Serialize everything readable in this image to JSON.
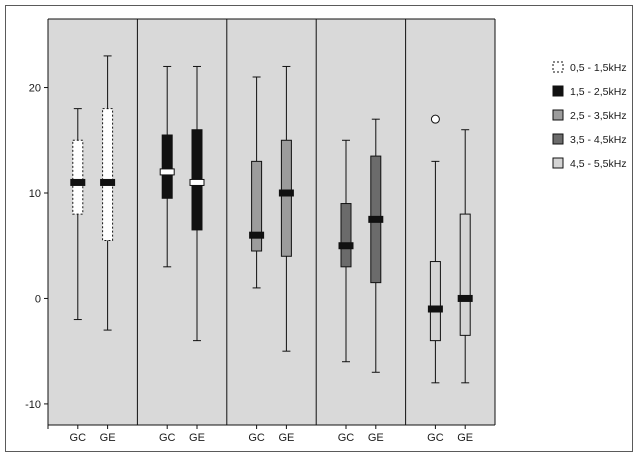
{
  "chart_data": {
    "type": "box",
    "title": "",
    "xlabel": "",
    "ylabel": "",
    "ylim": [
      -12,
      26.5
    ],
    "yticks": [
      -10,
      0,
      10,
      20
    ],
    "group_label_axis": [
      "GC",
      "GE"
    ],
    "panel_background": "#d9d9d9",
    "series": [
      {
        "name": "0,5 - 1,5kHz",
        "fill": "#ffffff",
        "median_fill": "#111111",
        "dashed": true,
        "boxes": [
          {
            "category": "GC",
            "min": -2,
            "q1": 8,
            "median": 11,
            "q3": 15,
            "max": 18,
            "outliers": []
          },
          {
            "category": "GE",
            "min": -3,
            "q1": 5.5,
            "median": 11,
            "q3": 18,
            "max": 23,
            "outliers": []
          }
        ]
      },
      {
        "name": "1,5 - 2,5kHz",
        "fill": "#111111",
        "median_fill": "#ffffff",
        "dashed": false,
        "boxes": [
          {
            "category": "GC",
            "min": 3,
            "q1": 9.5,
            "median": 12,
            "q3": 15.5,
            "max": 22,
            "outliers": []
          },
          {
            "category": "GE",
            "min": -4,
            "q1": 6.5,
            "median": 11,
            "q3": 16,
            "max": 22,
            "outliers": []
          }
        ]
      },
      {
        "name": "2,5 - 3,5kHz",
        "fill": "#9c9c9c",
        "median_fill": "#111111",
        "dashed": false,
        "boxes": [
          {
            "category": "GC",
            "min": 1,
            "q1": 4.5,
            "median": 6,
            "q3": 13,
            "max": 21,
            "outliers": []
          },
          {
            "category": "GE",
            "min": -5,
            "q1": 4,
            "median": 10,
            "q3": 15,
            "max": 22,
            "outliers": []
          }
        ]
      },
      {
        "name": "3,5 - 4,5kHz",
        "fill": "#6b6b6b",
        "median_fill": "#111111",
        "dashed": false,
        "boxes": [
          {
            "category": "GC",
            "min": -6,
            "q1": 3,
            "median": 5,
            "q3": 9,
            "max": 15,
            "outliers": []
          },
          {
            "category": "GE",
            "min": -7,
            "q1": 1.5,
            "median": 7.5,
            "q3": 13.5,
            "max": 17,
            "outliers": []
          }
        ]
      },
      {
        "name": "4,5 - 5,5kHz",
        "fill": "#d4d4d4",
        "median_fill": "#111111",
        "dashed": false,
        "boxes": [
          {
            "category": "GC",
            "min": -8,
            "q1": -4,
            "median": -1,
            "q3": 3.5,
            "max": 13,
            "outliers": [
              17
            ]
          },
          {
            "category": "GE",
            "min": -8,
            "q1": -3.5,
            "median": 0,
            "q3": 8,
            "max": 16,
            "outliers": []
          }
        ]
      }
    ],
    "legend_position": "top-right"
  }
}
